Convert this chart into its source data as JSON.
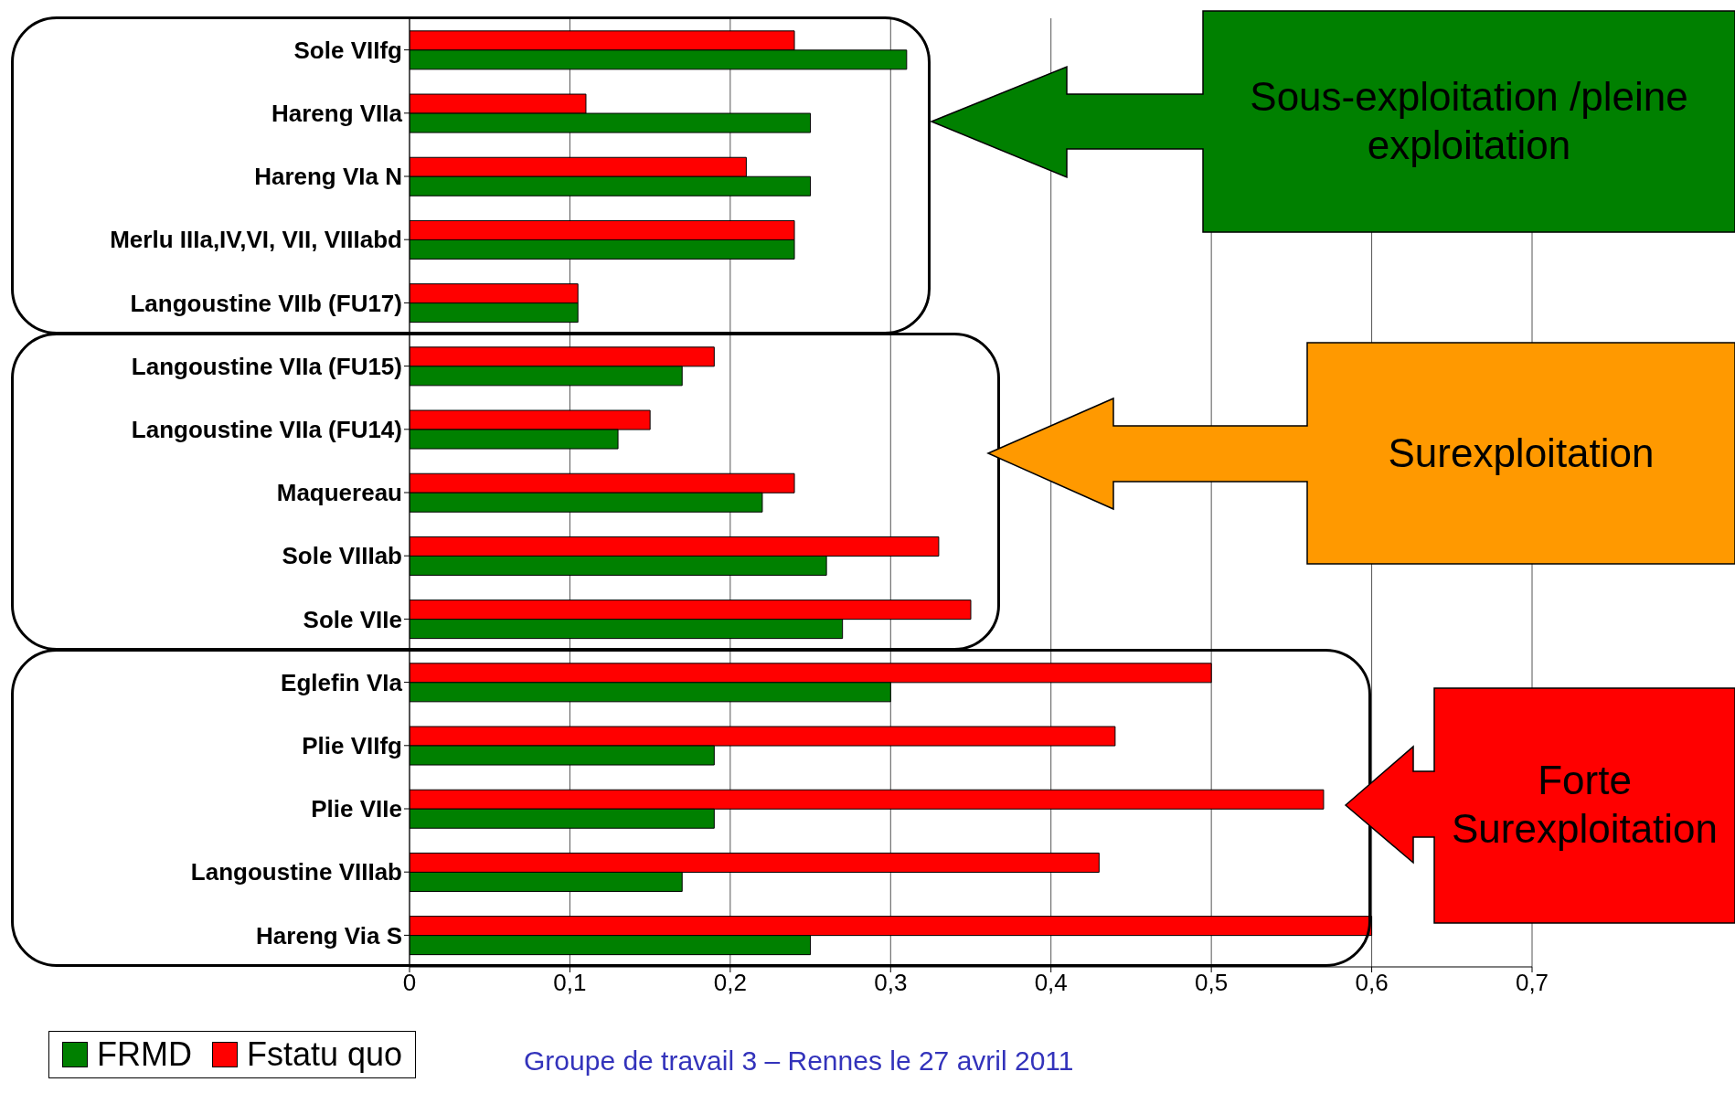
{
  "chart_data": {
    "type": "bar",
    "orientation": "horizontal",
    "categories": [
      "Sole VIIfg",
      "Hareng VIIa",
      "Hareng VIa N",
      "Merlu IIIa,IV,VI, VII, VIIIabd",
      "Langoustine VIIb (FU17)",
      "Langoustine VIIa (FU15)",
      "Langoustine VIIa (FU14)",
      "Maquereau",
      "Sole VIIIab",
      "Sole VIIe",
      "Eglefin VIa",
      "Plie VIIfg",
      "Plie VIIe",
      "Langoustine VIIIab",
      "Hareng Via S"
    ],
    "series": [
      {
        "name": "FRMD",
        "color": "#008000",
        "values": [
          0.31,
          0.25,
          0.25,
          0.24,
          0.105,
          0.17,
          0.13,
          0.22,
          0.26,
          0.27,
          0.3,
          0.19,
          0.19,
          0.17,
          0.25
        ]
      },
      {
        "name": "Fstatu quo",
        "color": "#ff0000",
        "values": [
          0.24,
          0.11,
          0.21,
          0.24,
          0.105,
          0.19,
          0.15,
          0.24,
          0.33,
          0.35,
          0.5,
          0.44,
          0.57,
          0.43,
          0.6
        ]
      }
    ],
    "xlim": [
      0,
      0.7
    ],
    "xticks": [
      0,
      {
        "value": 0.1,
        "label": "0,1"
      },
      {
        "value": 0.2,
        "label": "0,2"
      },
      {
        "value": 0.3,
        "label": "0,3"
      },
      {
        "value": 0.4,
        "label": "0,4"
      },
      {
        "value": 0.5,
        "label": "0,5"
      },
      {
        "value": 0.6,
        "label": "0,6"
      },
      {
        "value": 0.7,
        "label": "0,7"
      }
    ],
    "grid": "x",
    "legend": "bottom left",
    "annotations": [
      "Sous-exploitation /pleine exploitation",
      "Surexploitation",
      "Forte Surexploitation",
      "Groupe de travail 3 – Rennes le 27 avril 2011"
    ]
  }
}
